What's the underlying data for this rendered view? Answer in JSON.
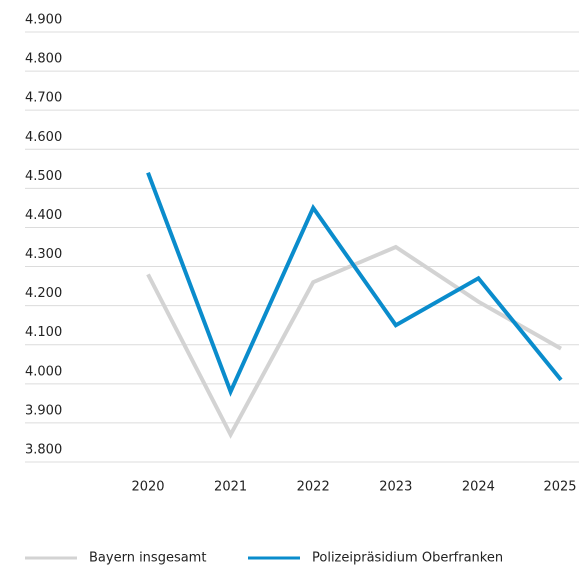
{
  "chart_data": {
    "type": "line",
    "categories": [
      "2020",
      "2021",
      "2022",
      "2023",
      "2024",
      "2025"
    ],
    "series": [
      {
        "name": "Bayern insgesamt",
        "color": "#d3d3d3",
        "values": [
          4280,
          3870,
          4260,
          4350,
          4210,
          4090
        ]
      },
      {
        "name": "Polizeipräsidium Oberfranken",
        "color": "#0a8ccc",
        "values": [
          4540,
          3980,
          4450,
          4150,
          4270,
          4010
        ]
      }
    ],
    "ylim": [
      3800,
      4900
    ],
    "yticks": [
      {
        "value": 3800,
        "label": "3.800"
      },
      {
        "value": 3900,
        "label": "3.900"
      },
      {
        "value": 4000,
        "label": "4.000"
      },
      {
        "value": 4100,
        "label": "4.100"
      },
      {
        "value": 4200,
        "label": "4.200"
      },
      {
        "value": 4300,
        "label": "4.300"
      },
      {
        "value": 4400,
        "label": "4.400"
      },
      {
        "value": 4500,
        "label": "4.500"
      },
      {
        "value": 4600,
        "label": "4.600"
      },
      {
        "value": 4700,
        "label": "4.700"
      },
      {
        "value": 4800,
        "label": "4.800"
      },
      {
        "value": 4900,
        "label": "4.900"
      }
    ],
    "grid": true
  }
}
